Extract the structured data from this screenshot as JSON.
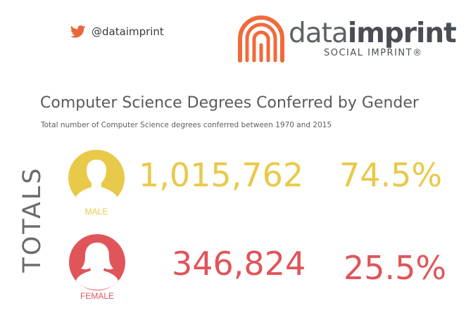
{
  "header": {
    "twitter_handle": "@dataimprint",
    "brand_name_light": "data",
    "brand_name_bold": "imprint",
    "brand_tagline": "SOCIAL IMPRINT®"
  },
  "colors": {
    "male": "#e9c94a",
    "female": "#df555a",
    "brand_orange": "#f06a3c",
    "twitter": "#e8683a"
  },
  "chart_data": {
    "type": "table",
    "title": "Computer Science Degrees Conferred by Gender",
    "subtitle": "Total number of Computer Science degrees conferred between 1970 and 2015",
    "row_label": "TOTALS",
    "categories": [
      "MALE",
      "FEMALE"
    ],
    "series": [
      {
        "name": "count",
        "values": [
          "1,015,762",
          "346,824"
        ]
      },
      {
        "name": "share",
        "values": [
          "74.5%",
          "25.5%"
        ]
      }
    ]
  }
}
